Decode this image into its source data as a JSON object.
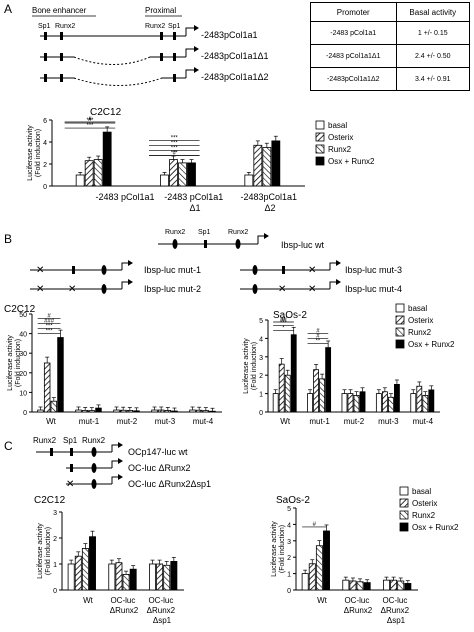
{
  "panel_labels": {
    "a": "A",
    "b": "B",
    "c": "C"
  },
  "legend_entries": [
    "basal",
    "Osterix",
    "Runx2",
    "Osx + Runx2"
  ],
  "panel_a_diagram": {
    "region_bone": "Bone enhancer",
    "region_proximal": "Proximal",
    "site_sp1": "Sp1",
    "site_runx2": "Runx2",
    "constructs": [
      "-2483pCol1a1",
      "-2483pCol1a1Δ1",
      "-2483pCol1a1Δ2"
    ]
  },
  "panel_a_table": {
    "header": [
      "Promoter",
      "Basal activity"
    ],
    "rows": [
      [
        "-2483 pCol1a1",
        "1 +/- 0.15"
      ],
      [
        "-2483 pCol1a1Δ1",
        "2.4 +/- 0.50"
      ],
      [
        "-2483pCol1a1Δ2",
        "3.4 +/- 0.91"
      ]
    ]
  },
  "panel_b_diagram": {
    "wt_sites": [
      "Runx2",
      "Sp1",
      "Runx2"
    ],
    "constructs": [
      "Ibsp-luc wt",
      "Ibsp-luc mut-1",
      "Ibsp-luc mut-2",
      "Ibsp-luc mut-3",
      "Ibsp-luc mut-4"
    ]
  },
  "panel_c_diagram": {
    "wt_sites": [
      "Runx2",
      "Sp1",
      "Runx2"
    ],
    "constructs": [
      "OCp147-luc wt",
      "OC-luc ΔRunx2",
      "OC-luc ΔRunx2Δsp1"
    ]
  },
  "chart_data": [
    {
      "id": "A",
      "type": "bar",
      "title": "C2C12",
      "ylabel": "Luciferase activity (Fold induction)",
      "ylim": [
        0,
        6
      ],
      "yticks": [
        0,
        2,
        4,
        6
      ],
      "categories": [
        "-2483 pCol1a1",
        "-2483 pCol1a1 Δ1",
        "-2483pCol1a1 Δ2"
      ],
      "series": [
        {
          "name": "basal",
          "values": [
            1.0,
            1.0,
            1.0
          ]
        },
        {
          "name": "Osterix",
          "values": [
            2.3,
            2.4,
            3.7
          ]
        },
        {
          "name": "Runx2",
          "values": [
            2.4,
            2.1,
            3.5
          ]
        },
        {
          "name": "Osx + Runx2",
          "values": [
            4.9,
            2.1,
            4.1
          ]
        }
      ],
      "annotations": [
        "***",
        "***",
        "#",
        "#",
        "***",
        "***",
        "***",
        "***",
        "#"
      ]
    },
    {
      "id": "B1",
      "type": "bar",
      "title": "C2C12",
      "ylabel": "Luciferase activity (Fold induction)",
      "ylim": [
        0,
        50
      ],
      "yticks": [
        0,
        10,
        20,
        30,
        40,
        50
      ],
      "categories": [
        "Wt",
        "mut-1",
        "mut-2",
        "mut-3",
        "mut-4"
      ],
      "series": [
        {
          "name": "basal",
          "values": [
            1.0,
            1.0,
            1.0,
            1.0,
            1.0
          ]
        },
        {
          "name": "Osterix",
          "values": [
            25,
            0.8,
            0.9,
            1.0,
            0.9
          ]
        },
        {
          "name": "Runx2",
          "values": [
            5.5,
            0.7,
            0.8,
            0.8,
            0.7
          ]
        },
        {
          "name": "Osx + Runx2",
          "values": [
            38,
            2.0,
            0.6,
            0.5,
            0.4
          ]
        }
      ],
      "annotations": [
        "***",
        "***",
        "###",
        "#"
      ]
    },
    {
      "id": "B2",
      "type": "bar",
      "title": "SaOs-2",
      "ylabel": "Luciferase activity (Fold induction)",
      "ylim": [
        0,
        5
      ],
      "yticks": [
        0,
        1,
        2,
        3,
        4,
        5
      ],
      "categories": [
        "Wt",
        "mut-1",
        "mut-2",
        "mut-3",
        "mut-4"
      ],
      "series": [
        {
          "name": "basal",
          "values": [
            1.0,
            1.0,
            1.0,
            1.0,
            1.0
          ]
        },
        {
          "name": "Osterix",
          "values": [
            2.6,
            2.3,
            1.0,
            1.1,
            1.4
          ]
        },
        {
          "name": "Runx2",
          "values": [
            2.0,
            1.8,
            0.9,
            0.8,
            0.9
          ]
        },
        {
          "name": "Osx + Runx2",
          "values": [
            4.2,
            3.5,
            1.1,
            1.5,
            1.2
          ]
        }
      ],
      "annotations": [
        "*",
        "***",
        "##",
        "#",
        "**",
        "#",
        "#"
      ]
    },
    {
      "id": "C1",
      "type": "bar",
      "title": "C2C12",
      "ylabel": "Luciferase activity (Fold induction)",
      "ylim": [
        0,
        3
      ],
      "yticks": [
        0,
        1,
        2,
        3
      ],
      "categories": [
        "Wt",
        "OC-luc ΔRunx2",
        "OC-luc ΔRunx2 Δsp1"
      ],
      "series": [
        {
          "name": "basal",
          "values": [
            1.0,
            1.0,
            1.0
          ]
        },
        {
          "name": "Osterix",
          "values": [
            1.3,
            1.05,
            1.0
          ]
        },
        {
          "name": "Runx2",
          "values": [
            1.6,
            0.6,
            0.95
          ]
        },
        {
          "name": "Osx + Runx2",
          "values": [
            2.05,
            0.8,
            1.1
          ]
        }
      ],
      "annotations": []
    },
    {
      "id": "C2",
      "type": "bar",
      "title": "SaOs-2",
      "ylabel": "Luciferase activity (Fold induction)",
      "ylim": [
        0,
        5
      ],
      "yticks": [
        0,
        1,
        2,
        3,
        4,
        5
      ],
      "categories": [
        "Wt",
        "OC-luc ΔRunx2",
        "OC-luc ΔRunx2 Δsp1"
      ],
      "series": [
        {
          "name": "basal",
          "values": [
            1.0,
            0.6,
            0.6
          ]
        },
        {
          "name": "Osterix",
          "values": [
            1.6,
            0.55,
            0.6
          ]
        },
        {
          "name": "Runx2",
          "values": [
            2.7,
            0.5,
            0.55
          ]
        },
        {
          "name": "Osx + Runx2",
          "values": [
            3.6,
            0.45,
            0.4
          ]
        }
      ],
      "annotations": [
        "#"
      ]
    }
  ]
}
